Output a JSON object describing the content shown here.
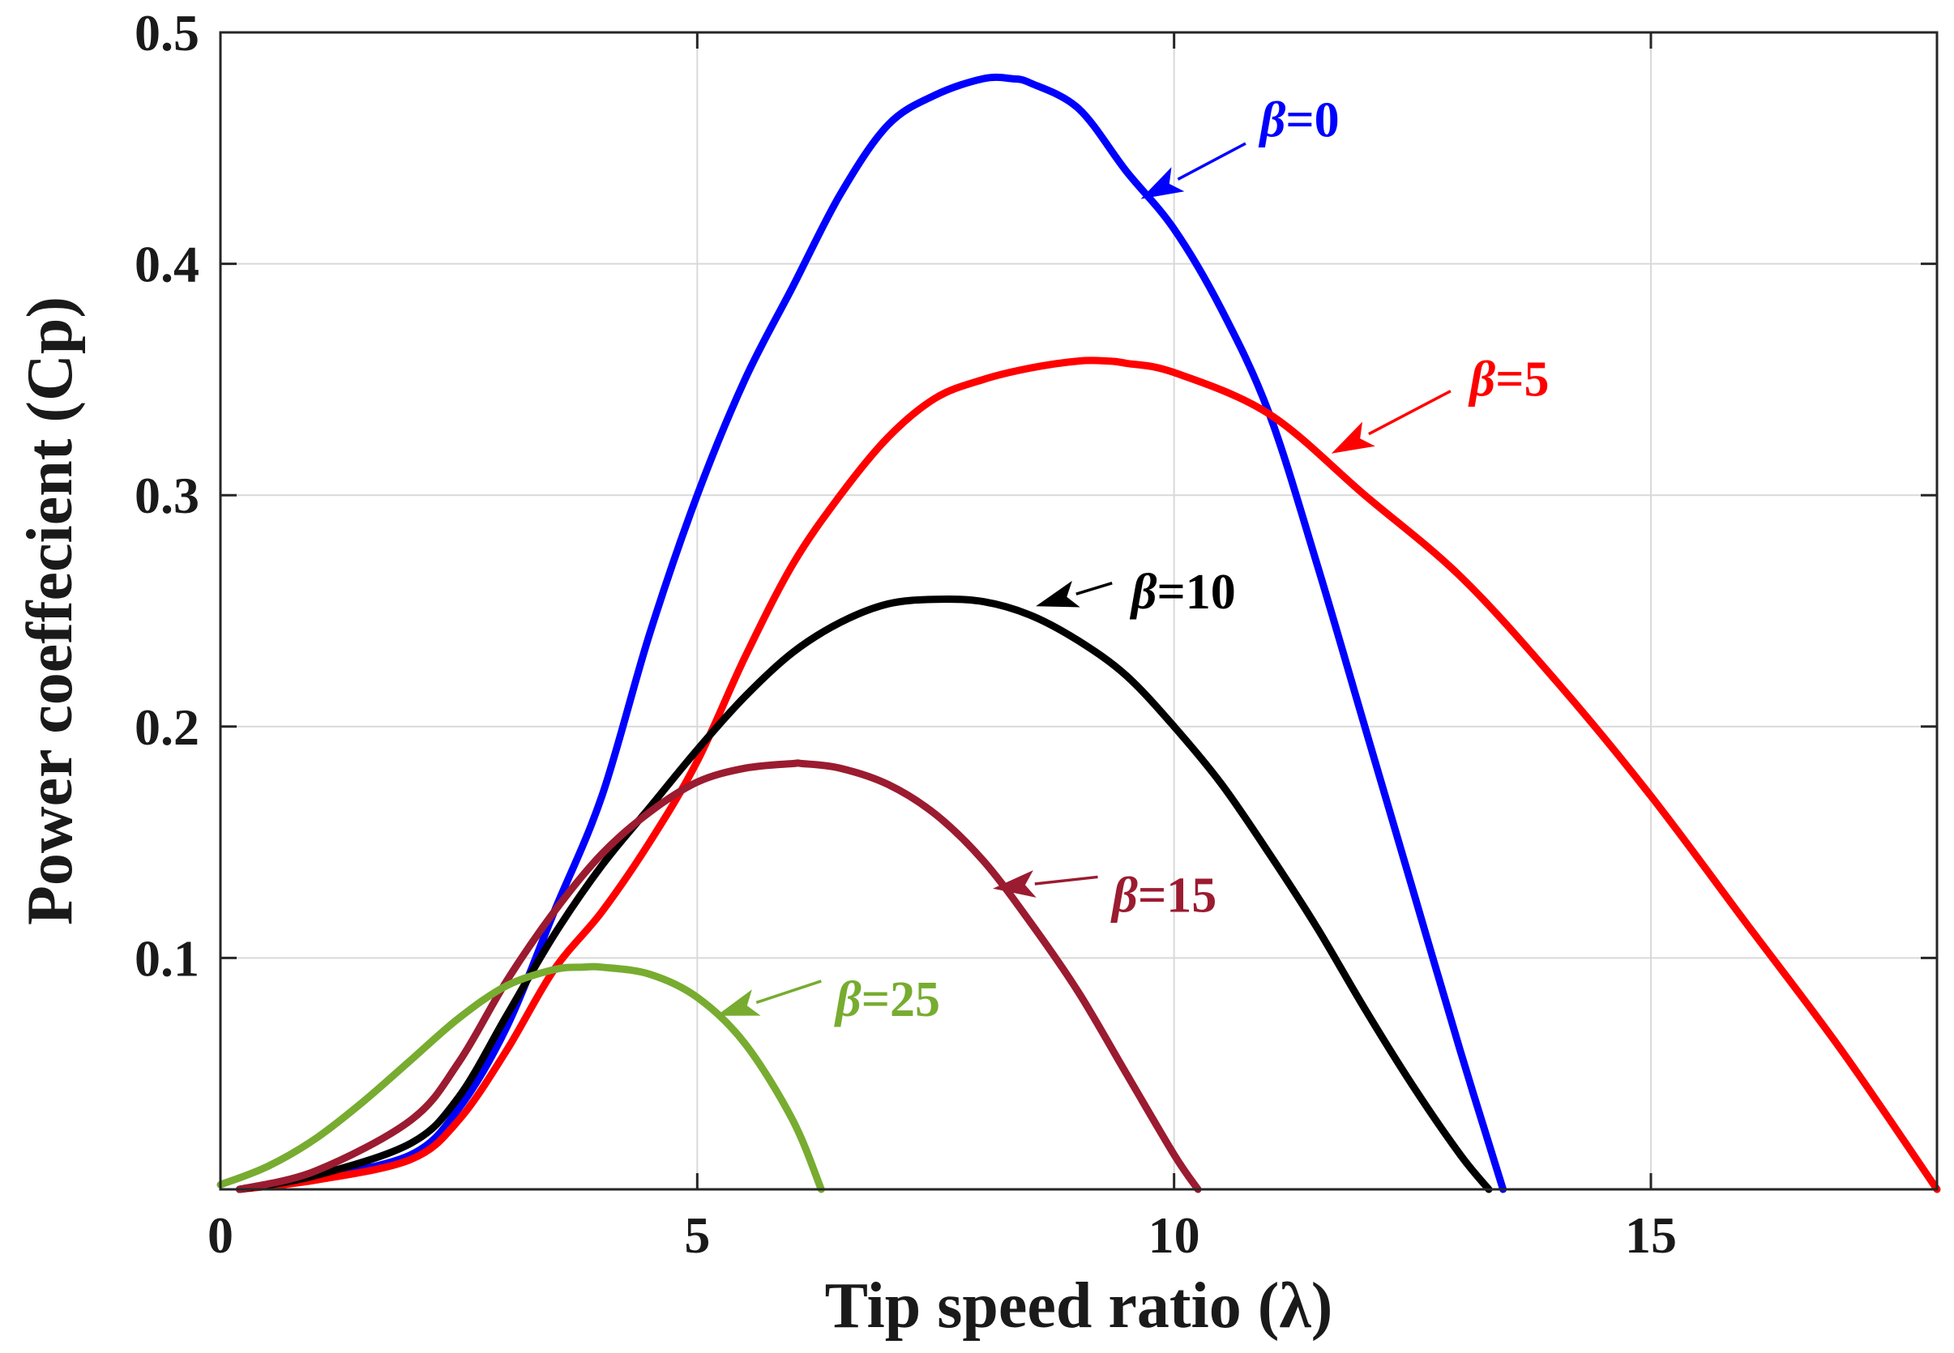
{
  "chart_data": {
    "type": "line",
    "xlabel": "Tip speed ratio (λ)",
    "ylabel": "Power coeffecient (Cp)",
    "xlim": [
      0,
      18
    ],
    "ylim": [
      0,
      0.5
    ],
    "xticks": [
      0,
      5,
      10,
      15
    ],
    "yticks": [
      0.1,
      0.2,
      0.3,
      0.4,
      0.5
    ],
    "xtick_labels": [
      "0",
      "5",
      "10",
      "15"
    ],
    "ytick_labels": [
      "0.1",
      "0.2",
      "0.3",
      "0.4",
      "0.5"
    ],
    "grid": true,
    "series": [
      {
        "name": "β=0",
        "color": "#0000ff",
        "x": [
          0.2,
          1,
          2,
          2.5,
          3,
          3.5,
          4,
          4.5,
          5,
          5.5,
          6,
          6.5,
          7,
          7.5,
          8,
          8.3,
          8.5,
          9,
          9.5,
          10,
          10.5,
          11,
          11.5,
          12,
          12.5,
          13,
          13.45
        ],
        "y": [
          0,
          0.005,
          0.015,
          0.035,
          0.07,
          0.12,
          0.17,
          0.24,
          0.3,
          0.35,
          0.39,
          0.43,
          0.46,
          0.473,
          0.48,
          0.48,
          0.478,
          0.467,
          0.44,
          0.415,
          0.38,
          0.335,
          0.27,
          0.2,
          0.13,
          0.06,
          0
        ]
      },
      {
        "name": "β=5",
        "color": "#ff0000",
        "x": [
          0.2,
          1,
          2,
          2.5,
          3,
          3.5,
          4,
          4.5,
          5,
          5.5,
          6,
          6.5,
          7,
          7.5,
          8,
          8.5,
          9,
          9.3,
          9.5,
          10,
          11,
          12,
          13,
          14,
          15,
          16,
          17,
          18
        ],
        "y": [
          0,
          0.004,
          0.013,
          0.03,
          0.06,
          0.095,
          0.12,
          0.15,
          0.185,
          0.23,
          0.27,
          0.3,
          0.325,
          0.342,
          0.35,
          0.355,
          0.358,
          0.358,
          0.357,
          0.353,
          0.335,
          0.3,
          0.265,
          0.22,
          0.17,
          0.115,
          0.06,
          0
        ]
      },
      {
        "name": "β=10",
        "color": "#000000",
        "x": [
          0.2,
          1,
          2,
          2.5,
          3,
          3.5,
          4,
          4.5,
          5,
          5.5,
          6,
          6.5,
          7,
          7.5,
          8,
          8.5,
          9,
          9.5,
          10,
          10.5,
          11,
          11.5,
          12,
          12.5,
          13,
          13.3
        ],
        "y": [
          0,
          0.006,
          0.02,
          0.04,
          0.075,
          0.11,
          0.14,
          0.165,
          0.19,
          0.213,
          0.232,
          0.245,
          0.253,
          0.255,
          0.254,
          0.248,
          0.237,
          0.222,
          0.2,
          0.175,
          0.145,
          0.113,
          0.078,
          0.045,
          0.015,
          0
        ]
      },
      {
        "name": "β=15",
        "color": "#9b1b30",
        "x": [
          0.2,
          1,
          2,
          2.5,
          3,
          3.5,
          4,
          4.5,
          5,
          5.5,
          6,
          6.1,
          6.5,
          7,
          7.5,
          8,
          8.5,
          9,
          9.5,
          10,
          10.25
        ],
        "y": [
          0,
          0.008,
          0.03,
          0.055,
          0.09,
          0.12,
          0.145,
          0.163,
          0.176,
          0.182,
          0.184,
          0.184,
          0.182,
          0.175,
          0.162,
          0.142,
          0.115,
          0.085,
          0.05,
          0.015,
          0
        ]
      },
      {
        "name": "β=25",
        "color": "#77ac30",
        "x": [
          0,
          0.5,
          1,
          1.5,
          2,
          2.5,
          3,
          3.5,
          3.8,
          4,
          4.5,
          5,
          5.5,
          6,
          6.3
        ],
        "y": [
          0.002,
          0.01,
          0.022,
          0.038,
          0.056,
          0.074,
          0.088,
          0.095,
          0.096,
          0.096,
          0.093,
          0.083,
          0.063,
          0.03,
          0
        ]
      }
    ],
    "annotations": [
      {
        "text": "β=0",
        "beta": "β",
        "value": "=0",
        "color": "#0000ff",
        "tx": 10.9,
        "ty": 0.462,
        "x0": 10.75,
        "y0": 0.452,
        "x1": 9.65,
        "y1": 0.428
      },
      {
        "text": "β=5",
        "beta": "β",
        "value": "=5",
        "color": "#ff0000",
        "tx": 13.1,
        "ty": 0.35,
        "x0": 12.9,
        "y0": 0.345,
        "x1": 11.65,
        "y1": 0.318
      },
      {
        "text": "β=10",
        "beta": "β",
        "value": "=10",
        "color": "#000000",
        "tx": 9.55,
        "ty": 0.258,
        "x0": 9.35,
        "y0": 0.262,
        "x1": 8.55,
        "y1": 0.252
      },
      {
        "text": "β=15",
        "beta": "β",
        "value": "=15",
        "color": "#9b1b30",
        "tx": 9.35,
        "ty": 0.127,
        "x0": 9.2,
        "y0": 0.135,
        "x1": 8.1,
        "y1": 0.13
      },
      {
        "text": "β=25",
        "beta": "β",
        "value": "=25",
        "color": "#77ac30",
        "tx": 6.45,
        "ty": 0.082,
        "x0": 6.3,
        "y0": 0.09,
        "x1": 5.2,
        "y1": 0.075
      }
    ]
  }
}
